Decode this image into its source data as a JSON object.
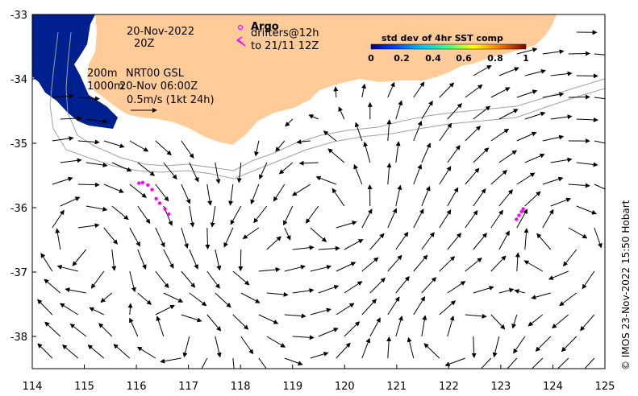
{
  "map": {
    "date_title": "20-Nov-2022",
    "time_title": "20Z",
    "depth_label_200": "200m",
    "depth_label_1000": "1000m",
    "source_label": "NRT00 GSL",
    "source_time": "20-Nov 06:00Z",
    "scale_label": "0.5m/s (1kt 24h)",
    "argo_label": "Argo",
    "drifters_label_1": "drifters@12h",
    "drifters_label_2": "to 21/11 12Z",
    "colorbar_title": "std dev of 4hr SST comp",
    "colorbar_ticks": [
      "0",
      "0.2",
      "0.4",
      "0.6",
      "0.8",
      "1"
    ],
    "credit": "© IMOS 23-Nov-2022 15:50 Hobart",
    "colors": {
      "land": "#ffcc99",
      "argo": "#ff00ff",
      "sst_high": "#00208f",
      "isobath": "#a0a0a0"
    },
    "x_ticks": [
      "114",
      "115",
      "116",
      "117",
      "118",
      "119",
      "120",
      "121",
      "122",
      "123",
      "124",
      "125"
    ],
    "y_ticks": [
      "-33",
      "-34",
      "-35",
      "-36",
      "-37",
      "-38"
    ],
    "x_range": [
      114,
      125
    ],
    "y_range": [
      -38.5,
      -33
    ]
  }
}
